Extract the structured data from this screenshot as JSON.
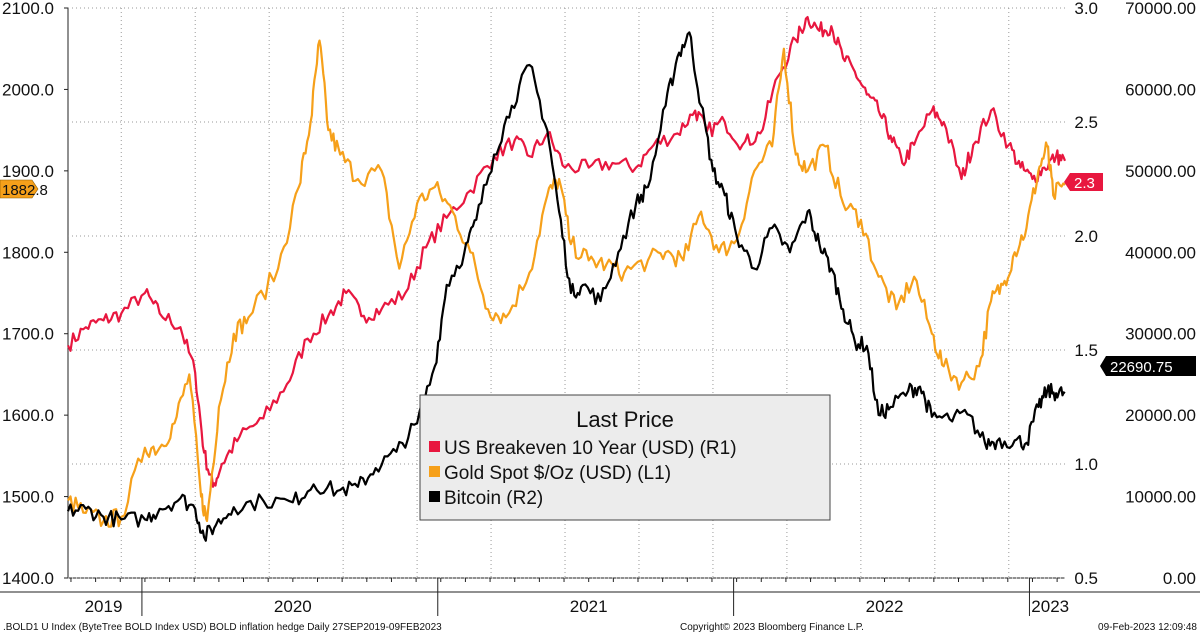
{
  "chart_data": {
    "type": "line",
    "title": "",
    "x_range": [
      "2019-09-27",
      "2023-02-09"
    ],
    "x_year_labels": [
      "2019",
      "2020",
      "2021",
      "2022",
      "2023"
    ],
    "axes": {
      "L1": {
        "min": 1400,
        "max": 2100,
        "ticks": [
          "1400.0",
          "1500.0",
          "1600.0",
          "1700.0",
          "1800.0",
          "1900.0",
          "2000.0",
          "2100.0"
        ]
      },
      "R1": {
        "min": 0.5,
        "max": 3.0,
        "ticks": [
          "0.5",
          "1.0",
          "1.5",
          "2.0",
          "2.5",
          "3.0"
        ]
      },
      "R2": {
        "min": 0,
        "max": 70000,
        "ticks": [
          "0.00",
          "10000.00",
          "20000.00",
          "30000.00",
          "40000.00",
          "50000.00",
          "60000.00",
          "70000.00"
        ]
      }
    },
    "series": [
      {
        "name": "US Breakeven 10 Year (USD)",
        "axis": "R1",
        "color": "#e8173f",
        "points": [
          [
            2019.74,
            1.52
          ],
          [
            2019.8,
            1.6
          ],
          [
            2019.86,
            1.63
          ],
          [
            2019.92,
            1.66
          ],
          [
            2020.0,
            1.75
          ],
          [
            2020.05,
            1.66
          ],
          [
            2020.12,
            1.6
          ],
          [
            2020.17,
            1.4
          ],
          [
            2020.2,
            1.05
          ],
          [
            2020.23,
            0.9
          ],
          [
            2020.26,
            1.0
          ],
          [
            2020.32,
            1.12
          ],
          [
            2020.4,
            1.2
          ],
          [
            2020.48,
            1.35
          ],
          [
            2020.55,
            1.55
          ],
          [
            2020.62,
            1.65
          ],
          [
            2020.68,
            1.75
          ],
          [
            2020.74,
            1.65
          ],
          [
            2020.8,
            1.68
          ],
          [
            2020.88,
            1.75
          ],
          [
            2020.95,
            1.95
          ],
          [
            2021.02,
            2.08
          ],
          [
            2021.1,
            2.2
          ],
          [
            2021.18,
            2.35
          ],
          [
            2021.25,
            2.42
          ],
          [
            2021.3,
            2.35
          ],
          [
            2021.36,
            2.45
          ],
          [
            2021.42,
            2.3
          ],
          [
            2021.5,
            2.3
          ],
          [
            2021.58,
            2.32
          ],
          [
            2021.66,
            2.3
          ],
          [
            2021.72,
            2.4
          ],
          [
            2021.8,
            2.45
          ],
          [
            2021.86,
            2.55
          ],
          [
            2021.9,
            2.46
          ],
          [
            2021.96,
            2.5
          ],
          [
            2022.02,
            2.4
          ],
          [
            2022.08,
            2.45
          ],
          [
            2022.14,
            2.7
          ],
          [
            2022.2,
            2.86
          ],
          [
            2022.24,
            2.96
          ],
          [
            2022.28,
            2.9
          ],
          [
            2022.32,
            2.92
          ],
          [
            2022.36,
            2.78
          ],
          [
            2022.4,
            2.72
          ],
          [
            2022.44,
            2.62
          ],
          [
            2022.48,
            2.55
          ],
          [
            2022.52,
            2.44
          ],
          [
            2022.56,
            2.32
          ],
          [
            2022.6,
            2.4
          ],
          [
            2022.66,
            2.55
          ],
          [
            2022.7,
            2.5
          ],
          [
            2022.76,
            2.25
          ],
          [
            2022.8,
            2.4
          ],
          [
            2022.86,
            2.55
          ],
          [
            2022.92,
            2.4
          ],
          [
            2022.96,
            2.3
          ],
          [
            2023.0,
            2.25
          ],
          [
            2023.04,
            2.3
          ],
          [
            2023.08,
            2.35
          ],
          [
            2023.11,
            2.33
          ]
        ]
      },
      {
        "name": "Gold Spot $/Oz (USD)",
        "axis": "L1",
        "color": "#f6a01a",
        "points": [
          [
            2019.74,
            1495
          ],
          [
            2019.8,
            1480
          ],
          [
            2019.86,
            1470
          ],
          [
            2019.92,
            1475
          ],
          [
            2020.0,
            1560
          ],
          [
            2020.05,
            1560
          ],
          [
            2020.1,
            1590
          ],
          [
            2020.15,
            1650
          ],
          [
            2020.19,
            1500
          ],
          [
            2020.21,
            1470
          ],
          [
            2020.25,
            1610
          ],
          [
            2020.3,
            1700
          ],
          [
            2020.35,
            1720
          ],
          [
            2020.45,
            1780
          ],
          [
            2020.52,
            1880
          ],
          [
            2020.56,
            1960
          ],
          [
            2020.59,
            2060
          ],
          [
            2020.62,
            1950
          ],
          [
            2020.66,
            1920
          ],
          [
            2020.72,
            1890
          ],
          [
            2020.8,
            1900
          ],
          [
            2020.86,
            1780
          ],
          [
            2020.92,
            1860
          ],
          [
            2020.98,
            1880
          ],
          [
            2021.04,
            1850
          ],
          [
            2021.1,
            1800
          ],
          [
            2021.16,
            1730
          ],
          [
            2021.22,
            1720
          ],
          [
            2021.3,
            1775
          ],
          [
            2021.36,
            1870
          ],
          [
            2021.4,
            1890
          ],
          [
            2021.44,
            1810
          ],
          [
            2021.5,
            1790
          ],
          [
            2021.56,
            1785
          ],
          [
            2021.62,
            1775
          ],
          [
            2021.7,
            1790
          ],
          [
            2021.76,
            1800
          ],
          [
            2021.82,
            1790
          ],
          [
            2021.88,
            1850
          ],
          [
            2021.94,
            1800
          ],
          [
            2022.0,
            1815
          ],
          [
            2022.06,
            1900
          ],
          [
            2022.12,
            1930
          ],
          [
            2022.16,
            2050
          ],
          [
            2022.2,
            1920
          ],
          [
            2022.24,
            1900
          ],
          [
            2022.3,
            1930
          ],
          [
            2022.36,
            1860
          ],
          [
            2022.42,
            1840
          ],
          [
            2022.48,
            1770
          ],
          [
            2022.54,
            1730
          ],
          [
            2022.6,
            1770
          ],
          [
            2022.66,
            1700
          ],
          [
            2022.7,
            1660
          ],
          [
            2022.76,
            1640
          ],
          [
            2022.82,
            1660
          ],
          [
            2022.86,
            1740
          ],
          [
            2022.9,
            1760
          ],
          [
            2022.94,
            1800
          ],
          [
            2022.98,
            1830
          ],
          [
            2023.02,
            1900
          ],
          [
            2023.05,
            1930
          ],
          [
            2023.07,
            1870
          ],
          [
            2023.11,
            1882.8
          ]
        ]
      },
      {
        "name": "Bitcoin",
        "axis": "R2",
        "color": "#000000",
        "points": [
          [
            2019.74,
            8200
          ],
          [
            2019.8,
            8500
          ],
          [
            2019.86,
            7500
          ],
          [
            2019.92,
            7200
          ],
          [
            2020.0,
            7200
          ],
          [
            2020.05,
            8500
          ],
          [
            2020.12,
            9800
          ],
          [
            2020.17,
            8500
          ],
          [
            2020.2,
            5000
          ],
          [
            2020.24,
            6500
          ],
          [
            2020.3,
            8700
          ],
          [
            2020.4,
            9500
          ],
          [
            2020.5,
            9300
          ],
          [
            2020.57,
            11500
          ],
          [
            2020.65,
            10700
          ],
          [
            2020.72,
            11200
          ],
          [
            2020.78,
            13500
          ],
          [
            2020.85,
            15500
          ],
          [
            2020.92,
            19000
          ],
          [
            2020.98,
            26000
          ],
          [
            2021.02,
            36000
          ],
          [
            2021.08,
            40000
          ],
          [
            2021.12,
            44000
          ],
          [
            2021.18,
            52000
          ],
          [
            2021.24,
            58000
          ],
          [
            2021.3,
            63000
          ],
          [
            2021.36,
            55000
          ],
          [
            2021.4,
            45000
          ],
          [
            2021.44,
            35000
          ],
          [
            2021.48,
            36000
          ],
          [
            2021.54,
            34000
          ],
          [
            2021.6,
            40000
          ],
          [
            2021.66,
            46000
          ],
          [
            2021.7,
            48000
          ],
          [
            2021.76,
            58000
          ],
          [
            2021.8,
            64000
          ],
          [
            2021.84,
            67000
          ],
          [
            2021.88,
            58000
          ],
          [
            2021.92,
            50000
          ],
          [
            2021.96,
            47000
          ],
          [
            2022.0,
            42000
          ],
          [
            2022.06,
            38000
          ],
          [
            2022.12,
            43000
          ],
          [
            2022.18,
            40000
          ],
          [
            2022.24,
            45000
          ],
          [
            2022.28,
            41000
          ],
          [
            2022.32,
            38000
          ],
          [
            2022.36,
            33000
          ],
          [
            2022.4,
            29000
          ],
          [
            2022.44,
            28500
          ],
          [
            2022.48,
            20000
          ],
          [
            2022.52,
            21000
          ],
          [
            2022.58,
            23000
          ],
          [
            2022.62,
            23500
          ],
          [
            2022.66,
            19800
          ],
          [
            2022.72,
            19500
          ],
          [
            2022.78,
            20100
          ],
          [
            2022.84,
            16500
          ],
          [
            2022.88,
            16800
          ],
          [
            2022.94,
            16900
          ],
          [
            2022.98,
            16600
          ],
          [
            2023.02,
            21000
          ],
          [
            2023.05,
            23000
          ],
          [
            2023.08,
            22700
          ],
          [
            2023.11,
            22690.75
          ]
        ]
      }
    ],
    "last_values": {
      "gold": "1882.8",
      "breakeven": "2.3",
      "bitcoin": "22690.75"
    },
    "legend": {
      "title": "Last Price",
      "entries": [
        "US Breakeven 10 Year (USD)  (R1)",
        "Gold Spot $/Oz (USD)  (L1)",
        "Bitcoin  (R2)"
      ],
      "placement": "bottom-center"
    }
  },
  "footer": {
    "left": ".BOLD1 U Index (ByteTree BOLD Index USD) BOLD inflation hedge  Daily 27SEP2019-09FEB2023",
    "center": "Copyright© 2023 Bloomberg Finance L.P.",
    "right": "09-Feb-2023 12:09:48"
  }
}
